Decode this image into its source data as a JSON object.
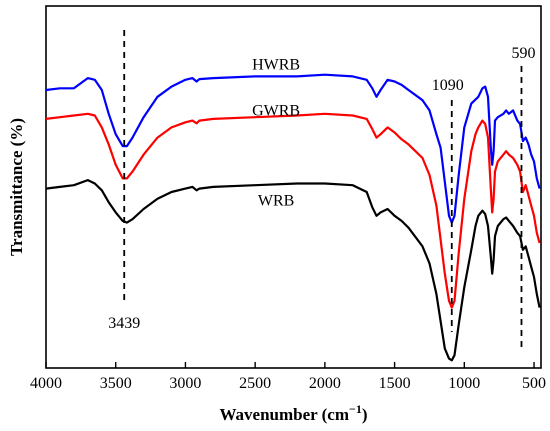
{
  "chart_data": {
    "type": "line",
    "xlabel_main": "Wavenumber (cm",
    "xlabel_sup": "−1",
    "xlabel_tail": ")",
    "ylabel": "Transmittance (%)",
    "x_ticks": [
      "4000",
      "3500",
      "3000",
      "2500",
      "2000",
      "1500",
      "1000",
      "500"
    ],
    "x_tick_values": [
      4000,
      3500,
      3000,
      2500,
      2000,
      1500,
      1000,
      500
    ],
    "xlim": [
      4000,
      450
    ],
    "ylim": [
      0,
      100
    ],
    "reversed_x": true,
    "series": [
      {
        "name": "HWRB",
        "color": "#0000ff",
        "points": [
          [
            4000,
            80
          ],
          [
            3900,
            80.5
          ],
          [
            3800,
            80.5
          ],
          [
            3700,
            83.5
          ],
          [
            3650,
            83
          ],
          [
            3600,
            80
          ],
          [
            3550,
            73
          ],
          [
            3500,
            67
          ],
          [
            3450,
            63.5
          ],
          [
            3420,
            63.5
          ],
          [
            3380,
            66
          ],
          [
            3300,
            72
          ],
          [
            3200,
            78
          ],
          [
            3100,
            81
          ],
          [
            3000,
            83
          ],
          [
            2950,
            83.5
          ],
          [
            2920,
            82.5
          ],
          [
            2900,
            83.2
          ],
          [
            2800,
            83.5
          ],
          [
            2500,
            84
          ],
          [
            2200,
            84
          ],
          [
            2000,
            84.5
          ],
          [
            1800,
            84
          ],
          [
            1700,
            83
          ],
          [
            1660,
            80.5
          ],
          [
            1630,
            78
          ],
          [
            1600,
            80
          ],
          [
            1550,
            83
          ],
          [
            1500,
            82.5
          ],
          [
            1450,
            81.5
          ],
          [
            1400,
            80
          ],
          [
            1300,
            77
          ],
          [
            1250,
            74
          ],
          [
            1200,
            67
          ],
          [
            1170,
            63
          ],
          [
            1140,
            53
          ],
          [
            1110,
            43
          ],
          [
            1090,
            41
          ],
          [
            1070,
            43
          ],
          [
            1040,
            55
          ],
          [
            1000,
            69
          ],
          [
            950,
            76
          ],
          [
            900,
            78
          ],
          [
            870,
            80.5
          ],
          [
            850,
            81
          ],
          [
            830,
            78
          ],
          [
            810,
            63
          ],
          [
            800,
            58
          ],
          [
            790,
            62
          ],
          [
            780,
            71
          ],
          [
            760,
            72
          ],
          [
            720,
            73
          ],
          [
            700,
            74
          ],
          [
            680,
            73
          ],
          [
            650,
            74
          ],
          [
            620,
            71
          ],
          [
            600,
            70
          ],
          [
            580,
            65
          ],
          [
            560,
            66
          ],
          [
            540,
            64
          ],
          [
            520,
            61
          ],
          [
            500,
            59
          ],
          [
            480,
            54
          ],
          [
            460,
            51
          ]
        ]
      },
      {
        "name": "GWRB",
        "color": "#ff0000",
        "points": [
          [
            4000,
            71.5
          ],
          [
            3900,
            72
          ],
          [
            3800,
            72.5
          ],
          [
            3700,
            73
          ],
          [
            3650,
            72.5
          ],
          [
            3600,
            69
          ],
          [
            3550,
            64
          ],
          [
            3500,
            58
          ],
          [
            3450,
            54
          ],
          [
            3420,
            54
          ],
          [
            3380,
            56
          ],
          [
            3300,
            61
          ],
          [
            3200,
            66
          ],
          [
            3100,
            69
          ],
          [
            3000,
            70.5
          ],
          [
            2950,
            71
          ],
          [
            2920,
            70.2
          ],
          [
            2900,
            71
          ],
          [
            2800,
            71.5
          ],
          [
            2500,
            72
          ],
          [
            2200,
            72.5
          ],
          [
            2000,
            73
          ],
          [
            1800,
            72.5
          ],
          [
            1700,
            71.5
          ],
          [
            1660,
            68.5
          ],
          [
            1630,
            66
          ],
          [
            1600,
            67
          ],
          [
            1550,
            69
          ],
          [
            1500,
            67.5
          ],
          [
            1450,
            65.5
          ],
          [
            1400,
            64
          ],
          [
            1300,
            60
          ],
          [
            1250,
            55
          ],
          [
            1200,
            46
          ],
          [
            1170,
            36
          ],
          [
            1140,
            26
          ],
          [
            1110,
            18
          ],
          [
            1090,
            16
          ],
          [
            1070,
            18
          ],
          [
            1040,
            32
          ],
          [
            1000,
            48
          ],
          [
            950,
            62
          ],
          [
            920,
            67
          ],
          [
            900,
            69
          ],
          [
            870,
            71
          ],
          [
            850,
            70
          ],
          [
            830,
            66
          ],
          [
            810,
            51
          ],
          [
            800,
            44
          ],
          [
            790,
            48
          ],
          [
            780,
            56
          ],
          [
            760,
            59
          ],
          [
            720,
            61
          ],
          [
            700,
            62
          ],
          [
            680,
            61
          ],
          [
            650,
            60
          ],
          [
            620,
            58
          ],
          [
            600,
            56
          ],
          [
            580,
            50
          ],
          [
            560,
            52
          ],
          [
            540,
            49
          ],
          [
            520,
            46
          ],
          [
            500,
            43
          ],
          [
            480,
            38
          ],
          [
            460,
            35
          ]
        ]
      },
      {
        "name": "WRB",
        "color": "#000000",
        "points": [
          [
            4000,
            51
          ],
          [
            3900,
            51.5
          ],
          [
            3800,
            52
          ],
          [
            3700,
            53.5
          ],
          [
            3650,
            52.5
          ],
          [
            3600,
            50.5
          ],
          [
            3550,
            47
          ],
          [
            3500,
            44
          ],
          [
            3450,
            41.5
          ],
          [
            3420,
            41
          ],
          [
            3380,
            42
          ],
          [
            3300,
            45
          ],
          [
            3200,
            48
          ],
          [
            3100,
            50
          ],
          [
            3000,
            51
          ],
          [
            2950,
            51.5
          ],
          [
            2920,
            50.5
          ],
          [
            2900,
            51
          ],
          [
            2800,
            51.5
          ],
          [
            2500,
            52
          ],
          [
            2200,
            52.5
          ],
          [
            2000,
            52.5
          ],
          [
            1800,
            52
          ],
          [
            1700,
            50
          ],
          [
            1660,
            45.5
          ],
          [
            1630,
            43
          ],
          [
            1600,
            44
          ],
          [
            1550,
            45
          ],
          [
            1500,
            43
          ],
          [
            1450,
            41.5
          ],
          [
            1400,
            39.5
          ],
          [
            1300,
            34
          ],
          [
            1250,
            29
          ],
          [
            1200,
            20
          ],
          [
            1170,
            12
          ],
          [
            1140,
            4
          ],
          [
            1110,
            1
          ],
          [
            1090,
            0.5
          ],
          [
            1070,
            2
          ],
          [
            1040,
            11
          ],
          [
            1000,
            22
          ],
          [
            950,
            33
          ],
          [
            920,
            40
          ],
          [
            900,
            43
          ],
          [
            870,
            44.5
          ],
          [
            850,
            43.5
          ],
          [
            830,
            40
          ],
          [
            810,
            31
          ],
          [
            800,
            26
          ],
          [
            790,
            30
          ],
          [
            780,
            37
          ],
          [
            760,
            40
          ],
          [
            720,
            42
          ],
          [
            700,
            42.5
          ],
          [
            680,
            41.5
          ],
          [
            650,
            40
          ],
          [
            620,
            38
          ],
          [
            600,
            37
          ],
          [
            580,
            33
          ],
          [
            560,
            34
          ],
          [
            540,
            31
          ],
          [
            520,
            28
          ],
          [
            500,
            25
          ],
          [
            480,
            20
          ],
          [
            460,
            16
          ]
        ]
      }
    ],
    "series_labels": [
      {
        "text": "HWRB",
        "x": 2350,
        "y": 86
      },
      {
        "text": "GWRB",
        "x": 2350,
        "y": 72.5
      },
      {
        "text": "WRB",
        "x": 2350,
        "y": 46
      }
    ],
    "annotations": [
      {
        "text": "3439",
        "x": 3439,
        "y_top": 100,
        "y_bottom": 0
      },
      {
        "text": "1090",
        "x": 1090
      },
      {
        "text": "590",
        "x": 590
      }
    ]
  }
}
